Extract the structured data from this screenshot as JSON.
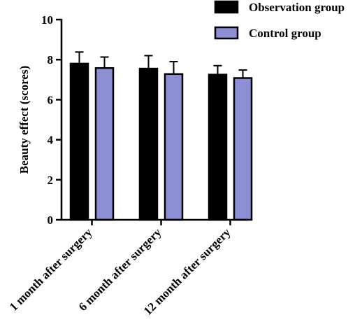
{
  "chart_data": {
    "type": "bar",
    "title": "",
    "xlabel": "",
    "ylabel": "Beauty effect (scores)",
    "ylim": [
      0,
      10
    ],
    "yticks": [
      0,
      2,
      4,
      6,
      8,
      10
    ],
    "grid": false,
    "legend_position": "top-right",
    "categories": [
      "1 month after surgery",
      "6 month after surgery",
      "12 month after surgery"
    ],
    "series": [
      {
        "name": "Observation group",
        "color": "#000000",
        "values": [
          7.8,
          7.55,
          7.25
        ],
        "errors": [
          0.58,
          0.65,
          0.45
        ]
      },
      {
        "name": "Control group",
        "color": "#8d8fd4",
        "values": [
          7.58,
          7.28,
          7.08
        ],
        "errors": [
          0.55,
          0.62,
          0.4
        ]
      }
    ]
  }
}
